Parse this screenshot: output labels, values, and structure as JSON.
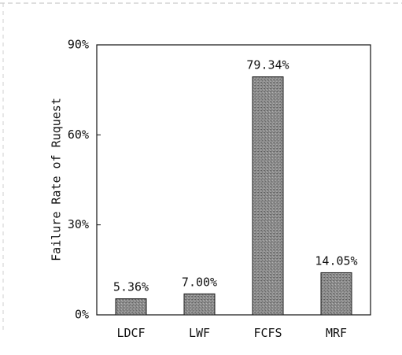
{
  "chart_data": {
    "type": "bar",
    "categories": [
      "LDCF",
      "LWF",
      "FCFS",
      "MRF"
    ],
    "values": [
      5.36,
      7.0,
      79.34,
      14.05
    ],
    "data_labels": [
      "5.36%",
      "7.00%",
      "79.34%",
      "14.05%"
    ],
    "ylabel": "Failure Rate of Ruquest",
    "ylim": [
      0,
      90
    ],
    "yticks": [
      0,
      30,
      60,
      90
    ],
    "ytick_labels": [
      "0%",
      "30%",
      "60%",
      "90%"
    ],
    "grid": false,
    "colors": {
      "bar_fill": "#8c8c8c",
      "bar_stroke": "#1a1a1a",
      "axis": "#111111"
    }
  }
}
